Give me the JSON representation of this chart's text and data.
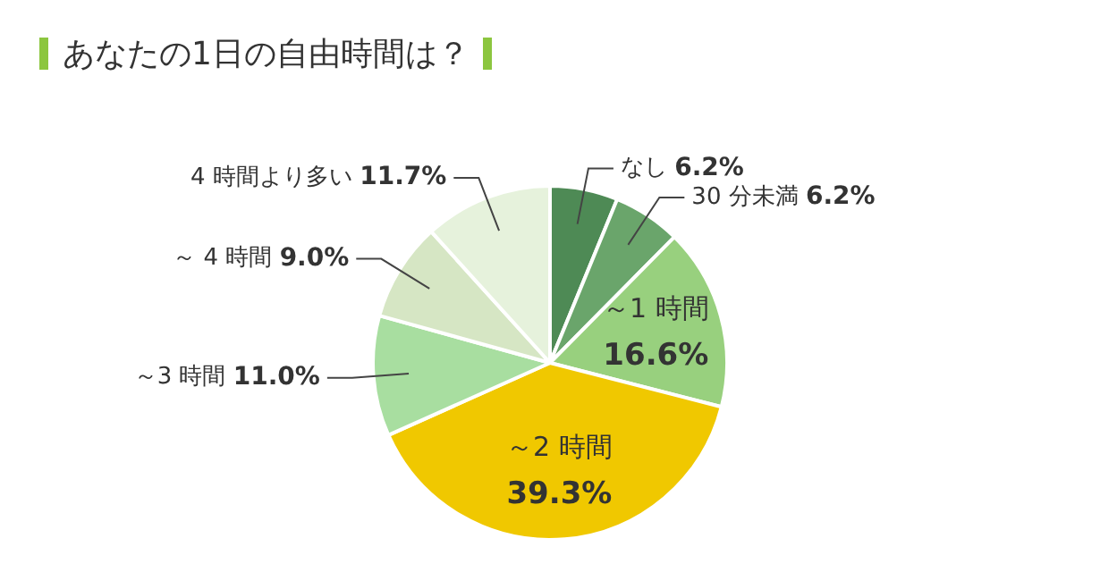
{
  "chart_data": {
    "type": "pie",
    "title": "あなたの1日の自由時間は？",
    "categories": [
      "なし",
      "30 分未満",
      "～1 時間",
      "～2 時間",
      "～3 時間",
      "～ 4 時間",
      "4 時間より多い"
    ],
    "values": [
      6.2,
      6.2,
      16.6,
      39.3,
      11.0,
      9.0,
      11.7
    ],
    "colors": [
      "#4e8a55",
      "#6aa56b",
      "#98d07e",
      "#f0c800",
      "#a8dea0",
      "#d6e6c4",
      "#e6f2dc"
    ],
    "value_labels": [
      "6.2%",
      "6.2%",
      "16.6%",
      "39.3%",
      "11.0%",
      "9.0%",
      "11.7%"
    ],
    "legend": false
  }
}
